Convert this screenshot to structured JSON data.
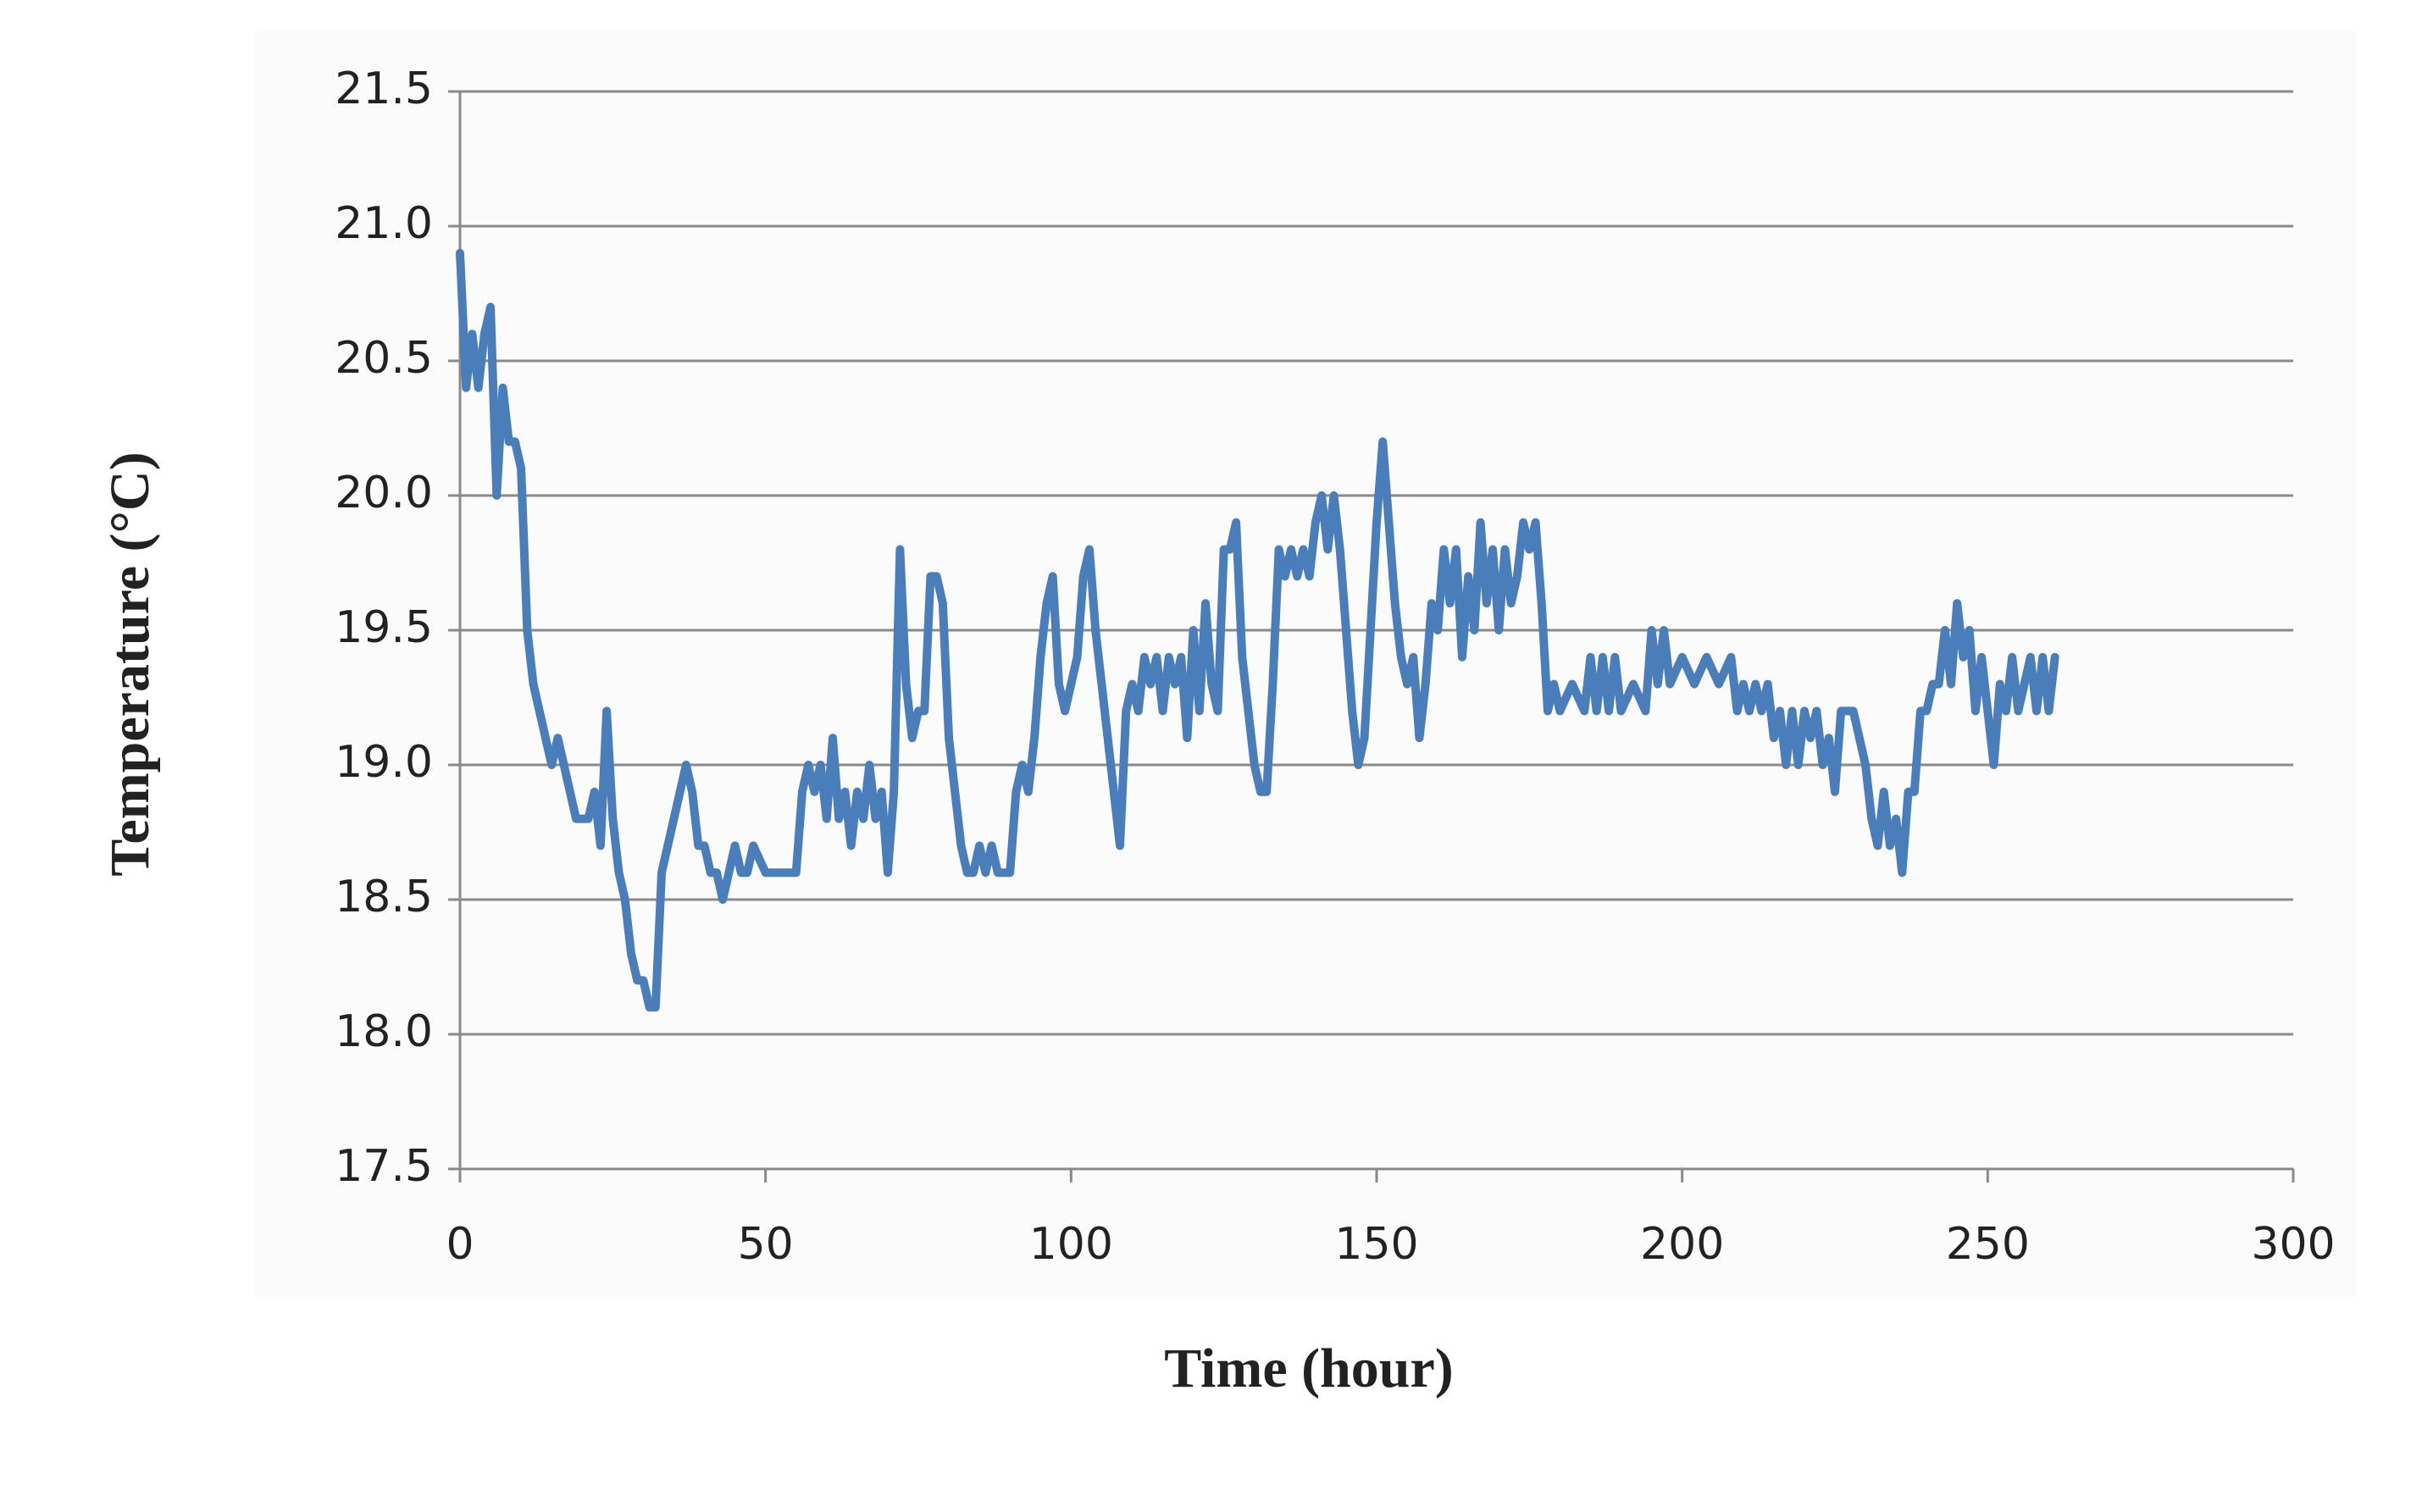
{
  "chart_data": {
    "type": "line",
    "x_label": "Time (hour)",
    "y_label": "Temperature (°C)",
    "x": [
      0,
      1,
      2,
      3,
      4,
      5,
      6,
      7,
      8,
      9,
      10,
      11,
      12,
      13,
      14,
      15,
      16,
      17,
      18,
      19,
      20,
      21,
      22,
      23,
      24,
      25,
      26,
      27,
      28,
      29,
      30,
      31,
      32,
      33,
      34,
      35,
      36,
      37,
      38,
      39,
      40,
      41,
      42,
      43,
      44,
      45,
      46,
      47,
      48,
      50,
      55,
      56,
      57,
      58,
      59,
      60,
      61,
      62,
      63,
      64,
      65,
      66,
      67,
      68,
      69,
      70,
      71,
      72,
      73,
      74,
      75,
      76,
      77,
      78,
      79,
      80,
      81,
      82,
      83,
      84,
      85,
      86,
      87,
      88,
      90,
      91,
      92,
      93,
      94,
      95,
      96,
      97,
      98,
      99,
      100,
      101,
      102,
      103,
      104,
      105,
      106,
      107,
      108,
      109,
      110,
      111,
      112,
      113,
      114,
      115,
      116,
      117,
      118,
      119,
      120,
      121,
      122,
      123,
      124,
      125,
      126,
      127,
      128,
      129,
      130,
      131,
      132,
      133,
      134,
      135,
      136,
      137,
      138,
      139,
      140,
      141,
      142,
      143,
      144,
      145,
      146,
      147,
      148,
      149,
      150,
      151,
      152,
      153,
      154,
      155,
      156,
      157,
      158,
      159,
      160,
      161,
      162,
      163,
      164,
      165,
      166,
      167,
      168,
      169,
      170,
      171,
      172,
      173,
      174,
      175,
      176,
      177,
      178,
      179,
      180,
      182,
      184,
      185,
      186,
      187,
      188,
      189,
      190,
      192,
      194,
      195,
      196,
      197,
      198,
      200,
      202,
      204,
      206,
      208,
      209,
      210,
      211,
      212,
      213,
      214,
      215,
      216,
      217,
      218,
      219,
      220,
      221,
      222,
      223,
      224,
      225,
      226,
      227,
      228,
      229,
      230,
      231,
      232,
      233,
      234,
      235,
      236,
      237,
      238,
      239,
      240,
      241,
      242,
      243,
      244,
      245,
      246,
      247,
      248,
      249,
      250,
      251,
      252,
      253,
      254,
      255,
      256,
      257,
      258,
      259,
      260,
      261
    ],
    "values": [
      20.9,
      20.4,
      20.6,
      20.4,
      20.6,
      20.7,
      20.0,
      20.4,
      20.2,
      20.2,
      20.1,
      19.5,
      19.3,
      19.2,
      19.1,
      19.0,
      19.1,
      19.0,
      18.9,
      18.8,
      18.8,
      18.8,
      18.9,
      18.7,
      19.2,
      18.8,
      18.6,
      18.5,
      18.3,
      18.2,
      18.2,
      18.1,
      18.1,
      18.6,
      18.7,
      18.8,
      18.9,
      19.0,
      18.9,
      18.7,
      18.7,
      18.6,
      18.6,
      18.5,
      18.6,
      18.7,
      18.6,
      18.6,
      18.7,
      18.6,
      18.6,
      18.9,
      19.0,
      18.9,
      19.0,
      18.8,
      19.1,
      18.8,
      18.9,
      18.7,
      18.9,
      18.8,
      19.0,
      18.8,
      18.9,
      18.6,
      18.9,
      19.8,
      19.3,
      19.1,
      19.2,
      19.2,
      19.7,
      19.7,
      19.6,
      19.1,
      18.9,
      18.7,
      18.6,
      18.6,
      18.7,
      18.6,
      18.7,
      18.6,
      18.6,
      18.9,
      19.0,
      18.9,
      19.1,
      19.4,
      19.6,
      19.7,
      19.3,
      19.2,
      19.3,
      19.4,
      19.7,
      19.8,
      19.5,
      19.3,
      19.1,
      18.9,
      18.7,
      19.2,
      19.3,
      19.2,
      19.4,
      19.3,
      19.4,
      19.2,
      19.4,
      19.3,
      19.4,
      19.1,
      19.5,
      19.2,
      19.6,
      19.3,
      19.2,
      19.8,
      19.8,
      19.9,
      19.4,
      19.2,
      19.0,
      18.9,
      18.9,
      19.3,
      19.8,
      19.7,
      19.8,
      19.7,
      19.8,
      19.7,
      19.9,
      20.0,
      19.8,
      20.0,
      19.8,
      19.5,
      19.2,
      19.0,
      19.1,
      19.5,
      19.9,
      20.2,
      19.9,
      19.6,
      19.4,
      19.3,
      19.4,
      19.1,
      19.3,
      19.6,
      19.5,
      19.8,
      19.6,
      19.8,
      19.4,
      19.7,
      19.5,
      19.9,
      19.6,
      19.8,
      19.5,
      19.8,
      19.6,
      19.7,
      19.9,
      19.8,
      19.9,
      19.6,
      19.2,
      19.3,
      19.2,
      19.3,
      19.2,
      19.4,
      19.2,
      19.4,
      19.2,
      19.4,
      19.2,
      19.3,
      19.2,
      19.5,
      19.3,
      19.5,
      19.3,
      19.4,
      19.3,
      19.4,
      19.3,
      19.4,
      19.2,
      19.3,
      19.2,
      19.3,
      19.2,
      19.3,
      19.1,
      19.2,
      19.0,
      19.2,
      19.0,
      19.2,
      19.1,
      19.2,
      19.0,
      19.1,
      18.9,
      19.2,
      19.2,
      19.2,
      19.1,
      19.0,
      18.8,
      18.7,
      18.9,
      18.7,
      18.8,
      18.6,
      18.9,
      18.9,
      19.2,
      19.2,
      19.3,
      19.3,
      19.5,
      19.3,
      19.6,
      19.4,
      19.5,
      19.2,
      19.4,
      19.2,
      19.0,
      19.3,
      19.2,
      19.4,
      19.2,
      19.3,
      19.4,
      19.2,
      19.4,
      19.2,
      19.4
    ],
    "color": "#4a7ebb",
    "xlim": [
      0,
      300
    ],
    "xticks": [
      0,
      50,
      100,
      150,
      200,
      250,
      300
    ],
    "ylim": [
      17.5,
      21.5
    ],
    "yticks": [
      17.5,
      {
        "value": 18,
        "label": "18.0"
      },
      18.5,
      {
        "value": 19,
        "label": "19.0"
      },
      19.5,
      {
        "value": 20,
        "label": "20.0"
      },
      20.5,
      {
        "value": 21,
        "label": "21.0"
      },
      21.5
    ],
    "grid": true
  }
}
